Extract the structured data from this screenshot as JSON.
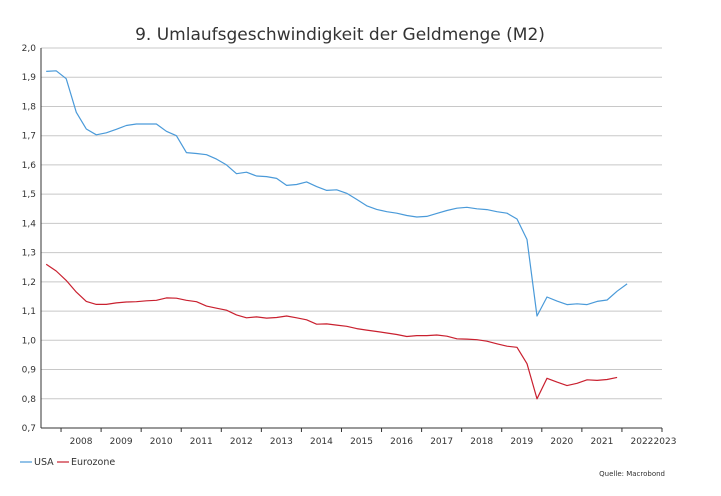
{
  "chart_data": {
    "type": "line",
    "title": "9. Umlaufsgeschwindigkeit der Geldmenge (M2)",
    "xlabel": "",
    "ylabel": "",
    "xlim": [
      2007.5,
      2023
    ],
    "ylim": [
      0.7,
      2.0
    ],
    "grid": true,
    "legend_position": "bottom-left",
    "source": "Quelle: Macrobond",
    "yticks": [
      "0,7",
      "0,8",
      "0,9",
      "1,0",
      "1,1",
      "1,2",
      "1,3",
      "1,4",
      "1,5",
      "1,6",
      "1,7",
      "1,8",
      "1,9",
      "2,0"
    ],
    "xticks": [
      "2008",
      "2009",
      "2010",
      "2011",
      "2012",
      "2013",
      "2014",
      "2015",
      "2016",
      "2017",
      "2018",
      "2019",
      "2020",
      "2021",
      "2022",
      "2023"
    ],
    "series": [
      {
        "name": "USA",
        "color": "#4a9ad9",
        "x": [
          2007.63,
          2007.88,
          2008.13,
          2008.38,
          2008.63,
          2008.88,
          2009.13,
          2009.38,
          2009.63,
          2009.88,
          2010.13,
          2010.38,
          2010.63,
          2010.88,
          2011.13,
          2011.38,
          2011.63,
          2011.88,
          2012.13,
          2012.38,
          2012.63,
          2012.88,
          2013.13,
          2013.38,
          2013.63,
          2013.88,
          2014.13,
          2014.38,
          2014.63,
          2014.88,
          2015.13,
          2015.38,
          2015.63,
          2015.88,
          2016.13,
          2016.38,
          2016.63,
          2016.88,
          2017.13,
          2017.38,
          2017.63,
          2017.88,
          2018.13,
          2018.38,
          2018.63,
          2018.88,
          2019.13,
          2019.38,
          2019.63,
          2019.88,
          2020.13,
          2020.38,
          2020.63,
          2020.88,
          2021.13,
          2021.38,
          2021.63,
          2021.88,
          2022.13
        ],
        "values": [
          1.92,
          1.922,
          1.895,
          1.78,
          1.723,
          1.703,
          1.71,
          1.722,
          1.735,
          1.74,
          1.74,
          1.74,
          1.715,
          1.7,
          1.642,
          1.639,
          1.635,
          1.62,
          1.6,
          1.57,
          1.575,
          1.562,
          1.56,
          1.554,
          1.53,
          1.533,
          1.542,
          1.526,
          1.513,
          1.515,
          1.503,
          1.482,
          1.46,
          1.448,
          1.44,
          1.435,
          1.427,
          1.422,
          1.424,
          1.434,
          1.444,
          1.452,
          1.455,
          1.45,
          1.447,
          1.44,
          1.435,
          1.415,
          1.345,
          1.083,
          1.148,
          1.134,
          1.122,
          1.125,
          1.122,
          1.133,
          1.138,
          1.168,
          1.193
        ]
      },
      {
        "name": "Eurozone",
        "color": "#c9202f",
        "x": [
          2007.63,
          2007.88,
          2008.13,
          2008.38,
          2008.63,
          2008.88,
          2009.13,
          2009.38,
          2009.63,
          2009.88,
          2010.13,
          2010.38,
          2010.63,
          2010.88,
          2011.13,
          2011.38,
          2011.63,
          2011.88,
          2012.13,
          2012.38,
          2012.63,
          2012.88,
          2013.13,
          2013.38,
          2013.63,
          2013.88,
          2014.13,
          2014.38,
          2014.63,
          2014.88,
          2015.13,
          2015.38,
          2015.63,
          2015.88,
          2016.13,
          2016.38,
          2016.63,
          2016.88,
          2017.13,
          2017.38,
          2017.63,
          2017.88,
          2018.13,
          2018.38,
          2018.63,
          2018.88,
          2019.13,
          2019.38,
          2019.63,
          2019.88,
          2020.13,
          2020.38,
          2020.63,
          2020.88,
          2021.13,
          2021.38,
          2021.63,
          2021.88
        ],
        "values": [
          1.26,
          1.237,
          1.205,
          1.165,
          1.133,
          1.123,
          1.123,
          1.128,
          1.131,
          1.132,
          1.135,
          1.137,
          1.145,
          1.144,
          1.137,
          1.132,
          1.117,
          1.11,
          1.103,
          1.087,
          1.077,
          1.08,
          1.076,
          1.078,
          1.083,
          1.077,
          1.07,
          1.055,
          1.056,
          1.052,
          1.048,
          1.04,
          1.035,
          1.03,
          1.025,
          1.02,
          1.013,
          1.016,
          1.016,
          1.018,
          1.014,
          1.005,
          1.004,
          1.002,
          0.997,
          0.988,
          0.98,
          0.976,
          0.92,
          0.8,
          0.87,
          0.857,
          0.845,
          0.853,
          0.865,
          0.863,
          0.866,
          0.873
        ]
      }
    ]
  }
}
